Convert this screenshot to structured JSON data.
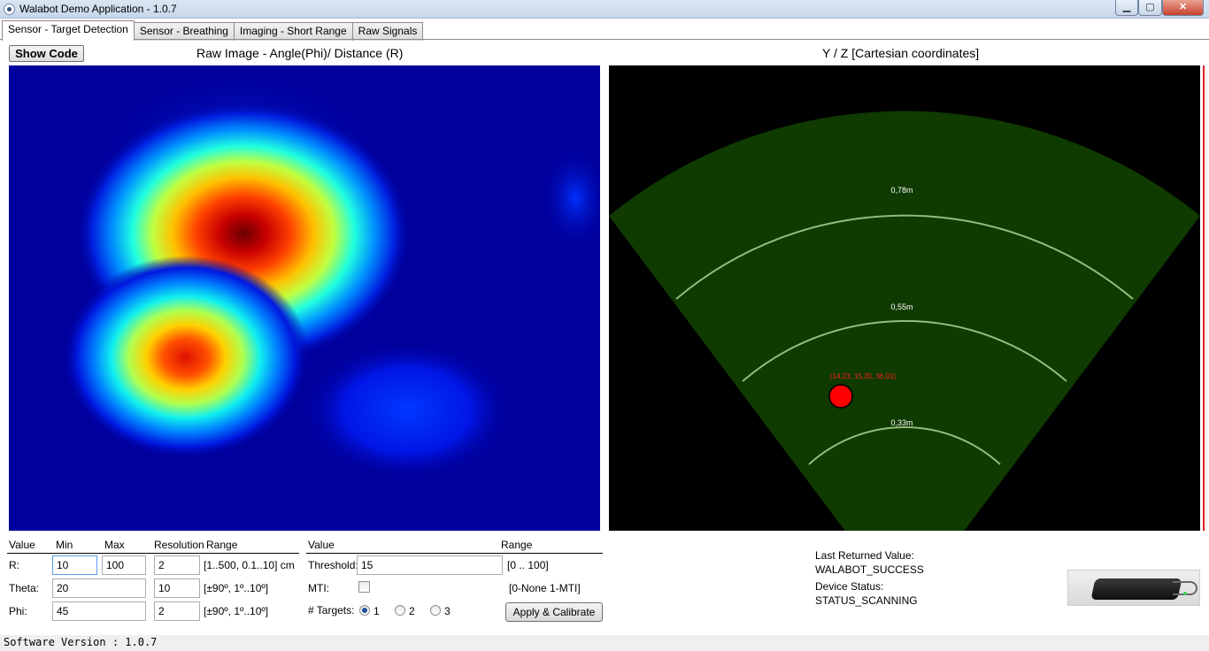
{
  "window": {
    "title": "Walabot Demo Application - 1.0.7",
    "minimize_glyph": "▁",
    "maximize_glyph": "▢",
    "close_glyph": "✕"
  },
  "tabs": [
    {
      "label": "Sensor - Target Detection",
      "active": true
    },
    {
      "label": "Sensor - Breathing",
      "active": false
    },
    {
      "label": "Imaging - Short Range",
      "active": false
    },
    {
      "label": "Raw Signals",
      "active": false
    }
  ],
  "toolbar": {
    "show_code_label": "Show Code"
  },
  "raw_image": {
    "title": "Raw Image - Angle(Phi)/ Distance (R)"
  },
  "cartesian": {
    "title": "Y / Z [Cartesian coordinates]",
    "rings": [
      "0,78m",
      "0,55m",
      "0,33m"
    ],
    "target_label": "(14,23, 15,20, 36,01)",
    "target_color": "#ff0000",
    "sector_color": "#0f3a00",
    "ring_color": "#8fbf7a"
  },
  "arena_table": {
    "headers": {
      "value": "Value",
      "min": "Min",
      "max": "Max",
      "resolution": "Resolution",
      "range": "Range"
    },
    "rows": [
      {
        "label": "R:",
        "min": "10",
        "max": "100",
        "resolution": "2",
        "range": "[1..500, 0.1..10] cm"
      },
      {
        "label": "Theta:",
        "min": "20",
        "max": "10",
        "range": "[±90º, 1º..10º]"
      },
      {
        "label": "Phi:",
        "min": "45",
        "max": "2",
        "range": "[±90º, 1º..10º]"
      }
    ]
  },
  "filter_table": {
    "headers": {
      "value": "Value",
      "range": "Range"
    },
    "threshold_label": "Threshold:",
    "threshold_value": "15",
    "threshold_range": "[0 .. 100]",
    "mti_label": "MTI:",
    "mti_checked": false,
    "mti_range": "[0-None 1-MTI]",
    "targets_label": "# Targets:",
    "target_options": [
      "1",
      "2",
      "3"
    ],
    "targets_selected": "1",
    "apply_label": "Apply & Calibrate"
  },
  "status": {
    "last_value_label": "Last Returned Value:",
    "last_value": "WALABOT_SUCCESS",
    "device_status_label": "Device Status:",
    "device_status": "STATUS_SCANNING"
  },
  "footer": {
    "software_version": "Software Version : 1.0.7"
  }
}
